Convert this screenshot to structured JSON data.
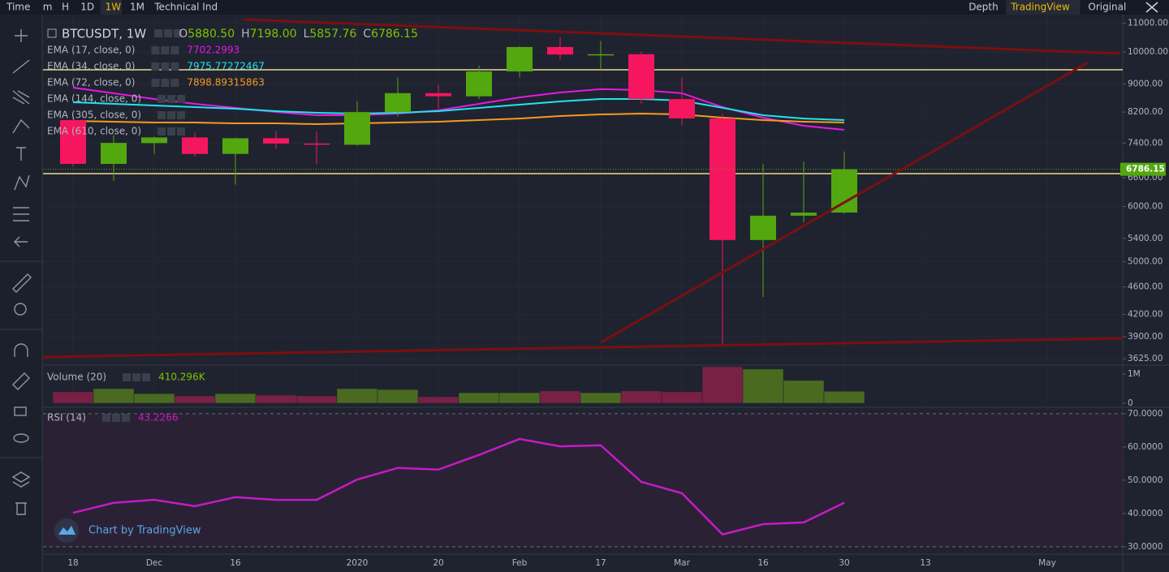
{
  "toolbar": {
    "left": [
      {
        "label": "Time"
      },
      {
        "label": "m"
      },
      {
        "label": "H"
      },
      {
        "label": "1D"
      },
      {
        "label": "1W",
        "active": true
      },
      {
        "label": "1M"
      },
      {
        "label": "Technical Ind"
      }
    ],
    "right": [
      {
        "label": "Original"
      },
      {
        "label": "TradingView",
        "active": true
      },
      {
        "label": "Depth"
      }
    ]
  },
  "watermark": "Chart by TradingView",
  "chart_data": [
    {
      "type": "candlestick",
      "title": "BTCUSDT, 1W",
      "header": [
        {
          "key": "O",
          "value": "5880.50"
        },
        {
          "key": "H",
          "value": "7198.00"
        },
        {
          "key": "L",
          "value": "5857.76"
        },
        {
          "key": "C",
          "value": "6786.15"
        }
      ],
      "categories": [
        "18",
        null,
        "Dec",
        null,
        "16",
        null,
        null,
        "2020",
        null,
        "20",
        null,
        "Feb",
        null,
        "17",
        null,
        "Mar",
        null,
        "16",
        null,
        "30",
        null,
        "13",
        null,
        null,
        "May"
      ],
      "up_color": "#53a70f",
      "down_color": "#f5165f",
      "open": [
        7985,
        6908,
        7400,
        7540,
        7140,
        7520,
        7390,
        7360,
        8200,
        8730,
        8640,
        9380,
        10170,
        9920,
        9930,
        8560,
        8030,
        5370,
        5820,
        5880.5,
        null,
        null,
        null,
        null,
        null
      ],
      "high": [
        8100,
        7600,
        7560,
        7660,
        7530,
        7700,
        7690,
        8510,
        9190,
        8980,
        9560,
        10200,
        10500,
        10370,
        10020,
        9190,
        8150,
        6910,
        6960,
        7198,
        null,
        null,
        null,
        null,
        null
      ],
      "low": [
        6850,
        6530,
        7140,
        7080,
        6450,
        7260,
        6900,
        7340,
        8080,
        8280,
        8560,
        9200,
        9750,
        9430,
        8430,
        7850,
        3780,
        4450,
        5690,
        5857.76,
        null,
        null,
        null,
        null,
        null
      ],
      "close": [
        6908,
        7405,
        7540,
        7140,
        7520,
        7390,
        7360,
        8200,
        8730,
        8640,
        9380,
        10170,
        9920,
        9930,
        8560,
        8030,
        5370,
        5820,
        5880,
        6786.15,
        null,
        null,
        null,
        null,
        null
      ],
      "series": [
        {
          "name": "EMA (17, close, 0)",
          "color": "#e619e6",
          "last_value": 7702.2993,
          "values": [
            8890,
            8727,
            8563,
            8427,
            8315,
            8204,
            8116,
            8116,
            8158,
            8247,
            8427,
            8608,
            8749,
            8845,
            8820,
            8727,
            8336,
            8050,
            7836,
            7733,
            null,
            null,
            null,
            null,
            null
          ]
        },
        {
          "name": "EMA (34, close, 0)",
          "color": "#22e3ee",
          "last_value": 7975.77272467,
          "values": [
            8471,
            8427,
            8382,
            8336,
            8292,
            8226,
            8182,
            8158,
            8182,
            8226,
            8315,
            8404,
            8494,
            8563,
            8563,
            8517,
            8315,
            8116,
            8027,
            7985,
            null,
            null,
            null,
            null,
            null
          ]
        },
        {
          "name": "EMA (72, close, 0)",
          "color": "#f79a1e",
          "last_value": 7898.89315863,
          "values": [
            7963,
            7943,
            7921,
            7921,
            7900,
            7900,
            7880,
            7900,
            7921,
            7943,
            7985,
            8027,
            8093,
            8137,
            8158,
            8137,
            8050,
            7985,
            7943,
            7921,
            null,
            null,
            null,
            null,
            null
          ]
        }
      ],
      "legend_only": [
        "EMA (144, close, 0)",
        "EMA (305, close, 0)",
        "EMA (610, close, 0)"
      ],
      "horizontal_lines": [
        {
          "value": 9431,
          "color": "#ecd98a"
        },
        {
          "value": 6689,
          "color": "#ecd98a"
        }
      ],
      "ylim": [
        3550,
        11200
      ],
      "log_scale": true,
      "grid": true,
      "yticks": [
        {
          "value": 11000,
          "label": "11000.00"
        },
        {
          "value": 10000,
          "label": "10000.00"
        },
        {
          "value": 9000,
          "label": "9000.00"
        },
        {
          "value": 8200,
          "label": "8200.00"
        },
        {
          "value": 7400,
          "label": "7400.00"
        },
        {
          "value": 6600,
          "label": "6600.00"
        },
        {
          "value": 6000,
          "label": "6000.00"
        },
        {
          "value": 5400,
          "label": "5400.00"
        },
        {
          "value": 5000,
          "label": "5000.00"
        },
        {
          "value": 4600,
          "label": "4600.00"
        },
        {
          "value": 4200,
          "label": "4200.00"
        },
        {
          "value": 3900,
          "label": "3900.00"
        },
        {
          "value": 3625,
          "label": "3625.00"
        }
      ]
    },
    {
      "type": "bar",
      "title": "Volume (20)",
      "last_label": "410.296K",
      "values": [
        390000,
        500000,
        330000,
        250000,
        330000,
        280000,
        250000,
        500000,
        470000,
        220000,
        360000,
        360000,
        420000,
        360000,
        420000,
        390000,
        1250000,
        1170000,
        780000,
        410296
      ],
      "up_color": "#4a6a20",
      "down_color": "#792046",
      "ylim": [
        0,
        1250000
      ],
      "yticks": [
        {
          "value": 1000000,
          "label": "1M"
        },
        0
      ]
    },
    {
      "type": "line",
      "title": "RSI (14)",
      "color": "#c51bc5",
      "values": [
        40.2,
        43.2,
        44.1,
        42.2,
        44.9,
        44.1,
        44.1,
        50.2,
        53.7,
        53.2,
        57.6,
        62.4,
        60.2,
        60.5,
        49.5,
        46.1,
        33.7,
        36.8,
        37.3,
        43.2266
      ],
      "band": [
        30,
        70
      ],
      "ylim": [
        28.5,
        71.2
      ],
      "yticks": [
        {
          "value": 70,
          "label": "70.0000"
        },
        {
          "value": 60,
          "label": "60.0000"
        },
        {
          "value": 50,
          "label": "50.0000"
        },
        {
          "value": 40,
          "label": "40.0000"
        },
        {
          "value": 30,
          "label": "30.0000"
        }
      ]
    }
  ]
}
